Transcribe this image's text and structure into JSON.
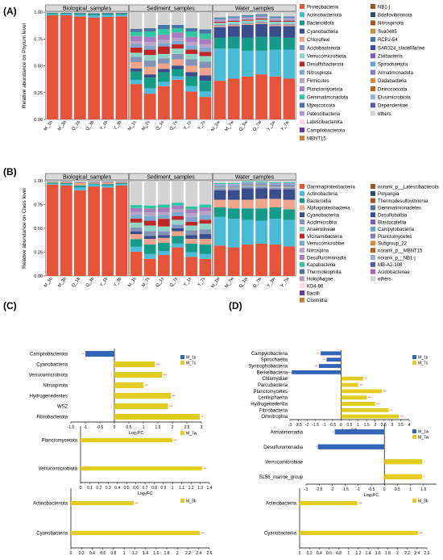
{
  "panels": {
    "A": "(A)",
    "B": "(B)",
    "C": "(C)",
    "D": "(D)"
  },
  "colors": {
    "fc_up": "#e2cd1e",
    "fc_down": "#3466b8"
  },
  "chart_data": [
    {
      "type": "bar",
      "id": "A",
      "stacked": true,
      "ylabel": "Relative abundance on Phylum level",
      "ylim": [
        0,
        1
      ],
      "yticks": [
        "0.00",
        "0.25",
        "0.50",
        "0.75",
        "1.00"
      ],
      "facets": [
        "Biological_samples",
        "Sediment_samples",
        "Water_samples"
      ],
      "categories": [
        [
          "M_1b",
          "M_3b",
          "Q_1b",
          "Q_3b",
          "Y_1b",
          "Y_3b"
        ],
        [
          "M_1s",
          "M_7s",
          "Q_1s",
          "Q_7s",
          "Y_1s",
          "Y_7s"
        ],
        [
          "M_1w",
          "M_7w",
          "Q_1w",
          "Q_7w",
          "Y_1w",
          "Y_7w"
        ]
      ],
      "legend": [
        "Proteobacteria",
        "Actinobacteriota",
        "Bacteroidota",
        "Cyanobacteria",
        "Chloroflexi",
        "Acidobacteriota",
        "Verrucomicrobiota",
        "Desulfobacterota",
        "Nitrospirota",
        "Firmicutes",
        "Planctomycetota",
        "Gemmatimonadota",
        "Myxococcota",
        "Patescibacteria",
        "Latescibacterota",
        "Campilobacterota",
        "MBNT15",
        "NB1-j",
        "Bdellovibrionota",
        "Nitrospinota",
        "Sva0485",
        "RCP2-54",
        "SAR324_cladeMarine",
        "Zixibacteria",
        "Spirochaetota",
        "Armatimonadota",
        "Dadabacteria",
        "Deinococcota",
        "Elusimicrobiota",
        "Dependentiae",
        "others"
      ],
      "legend_colors": [
        "#e8533c",
        "#4bbbd8",
        "#159b8a",
        "#3a4d8c",
        "#f0a48c",
        "#8593b8",
        "#8fd3c4",
        "#c12525",
        "#7da7cf",
        "#b7a4c8",
        "#a77fc0",
        "#2ec8a0",
        "#4a74a6",
        "#b49ac2",
        "#ffd5e8",
        "#6a3d9a",
        "#c87d3a",
        "#8e5a2e",
        "#34495e",
        "#a0522d",
        "#c0903a",
        "#4f6e9a",
        "#3b4aa0",
        "#7b5fb0",
        "#6fa0c8",
        "#8a7bb7",
        "#d88a3a",
        "#b5651d",
        "#9ab0cc",
        "#5a5aa0",
        "#d3d3d3"
      ],
      "series_order": [
        "Proteobacteria",
        "Actinobacteriota",
        "Bacteroidota",
        "Cyanobacteria",
        "Chloroflexi",
        "Acidobacteriota",
        "Verrucomicrobiota",
        "Desulfobacterota",
        "Nitrospirota",
        "Firmicutes",
        "Planctomycetota",
        "Gemmatimonadota",
        "Myxococcota",
        "others"
      ],
      "values": [
        [
          [
            0.97,
            0.01,
            0.01,
            0.003,
            0,
            0,
            0.002,
            0,
            0,
            0.002,
            0,
            0,
            0,
            0.003
          ],
          [
            0.97,
            0.01,
            0.01,
            0.003,
            0,
            0,
            0.002,
            0,
            0,
            0.002,
            0,
            0,
            0,
            0.003
          ],
          [
            0.96,
            0.015,
            0.01,
            0.005,
            0,
            0,
            0.003,
            0,
            0,
            0.003,
            0,
            0,
            0,
            0.004
          ],
          [
            0.95,
            0.02,
            0.012,
            0.006,
            0,
            0,
            0.004,
            0,
            0,
            0.003,
            0,
            0,
            0,
            0.005
          ],
          [
            0.955,
            0.02,
            0.01,
            0.006,
            0,
            0,
            0.003,
            0,
            0,
            0.002,
            0,
            0,
            0,
            0.004
          ],
          [
            0.96,
            0.015,
            0.012,
            0.005,
            0,
            0,
            0.003,
            0,
            0,
            0.002,
            0,
            0,
            0,
            0.003
          ]
        ],
        [
          [
            0.34,
            0.04,
            0.08,
            0.03,
            0.06,
            0.05,
            0.04,
            0.05,
            0.03,
            0.03,
            0.05,
            0.04,
            0.03,
            0.16
          ],
          [
            0.24,
            0.05,
            0.1,
            0.03,
            0.07,
            0.06,
            0.05,
            0.05,
            0.04,
            0.03,
            0.05,
            0.05,
            0.03,
            0.15
          ],
          [
            0.31,
            0.04,
            0.09,
            0.03,
            0.05,
            0.05,
            0.04,
            0.07,
            0.03,
            0.03,
            0.05,
            0.05,
            0.04,
            0.12
          ],
          [
            0.37,
            0.03,
            0.07,
            0.03,
            0.06,
            0.05,
            0.05,
            0.04,
            0.03,
            0.03,
            0.05,
            0.04,
            0.03,
            0.12
          ],
          [
            0.26,
            0.05,
            0.09,
            0.04,
            0.06,
            0.06,
            0.05,
            0.04,
            0.04,
            0.03,
            0.05,
            0.05,
            0.03,
            0.15
          ],
          [
            0.21,
            0.05,
            0.1,
            0.05,
            0.07,
            0.06,
            0.05,
            0.04,
            0.04,
            0.03,
            0.05,
            0.05,
            0.04,
            0.16
          ]
        ],
        [
          [
            0.36,
            0.3,
            0.1,
            0.1,
            0.01,
            0.01,
            0.02,
            0.01,
            0.005,
            0.01,
            0.01,
            0.005,
            0.01,
            0.05
          ],
          [
            0.38,
            0.28,
            0.11,
            0.1,
            0.01,
            0.01,
            0.02,
            0.01,
            0.005,
            0.01,
            0.01,
            0.005,
            0.01,
            0.04
          ],
          [
            0.4,
            0.24,
            0.12,
            0.12,
            0.01,
            0.01,
            0.02,
            0.01,
            0.005,
            0.01,
            0.01,
            0.005,
            0.01,
            0.03
          ],
          [
            0.42,
            0.22,
            0.13,
            0.12,
            0.01,
            0.01,
            0.02,
            0.01,
            0.005,
            0.01,
            0.01,
            0.005,
            0.01,
            0.02
          ],
          [
            0.4,
            0.25,
            0.12,
            0.1,
            0.01,
            0.01,
            0.02,
            0.01,
            0.005,
            0.01,
            0.01,
            0.005,
            0.01,
            0.04
          ],
          [
            0.38,
            0.27,
            0.11,
            0.11,
            0.01,
            0.01,
            0.02,
            0.01,
            0.005,
            0.01,
            0.01,
            0.005,
            0.01,
            0.04
          ]
        ]
      ]
    },
    {
      "type": "bar",
      "id": "B",
      "stacked": true,
      "ylabel": "Relative abundance on Class level",
      "ylim": [
        0,
        1
      ],
      "yticks": [
        "0.00",
        "0.25",
        "0.50",
        "0.75",
        "1.00"
      ],
      "facets": [
        "Biological_samples",
        "Sediment_samples",
        "Water_samples"
      ],
      "categories": [
        [
          "M_1b",
          "M_3b",
          "Q_1b",
          "Q_3b",
          "Y_1b",
          "Y_3b"
        ],
        [
          "M_1s",
          "M_7s",
          "Q_1s",
          "Q_7s",
          "Y_1s",
          "Y_7s"
        ],
        [
          "M_1w",
          "M_7w",
          "Q_1w",
          "Q_7w",
          "Y_1w",
          "Y_7w"
        ]
      ],
      "legend": [
        "Gammaproteobacteria",
        "Actinobacteria",
        "Bacteroidia",
        "Alphaproteobacteria",
        "Cyanobacteriia",
        "Acidimicrobiia",
        "Anaerolineae",
        "Vicinamibacteria",
        "Verrucomicrobiae",
        "Nitrospiria",
        "Desulfuromonadia",
        "Kapabacteria",
        "Thermoleophilia",
        "Holophagae",
        "KD4-96",
        "Bacilli",
        "Clostridia",
        "norank_p__Latescibacterota",
        "Polyangia",
        "Thermodesulfovibrionia",
        "Gemmatimonadetes",
        "Desulfobulbia",
        "Blastocatellia",
        "Campylobacteria",
        "Planctomycetes",
        "Subgroup_22",
        "norank_p__MBNT15",
        "norank_p__NB1-j",
        "MB-A2-108",
        "Acidobacteriae",
        "others"
      ],
      "legend_colors": [
        "#e8533c",
        "#4bbbd8",
        "#159b8a",
        "#f0a48c",
        "#3a4d8c",
        "#8593b8",
        "#8fd3c4",
        "#c12525",
        "#7da7cf",
        "#b7a4c8",
        "#a77fc0",
        "#2ec8a0",
        "#4a74a6",
        "#b49ac2",
        "#ffd5e8",
        "#6a3d9a",
        "#c87d3a",
        "#8e5a2e",
        "#34495e",
        "#a0522d",
        "#4f6e9a",
        "#3b4aa0",
        "#7b5fb0",
        "#6fa0c8",
        "#8a7bb7",
        "#d88a3a",
        "#b5651d",
        "#9ab0cc",
        "#5a5aa0",
        "#9a6bb5",
        "#d3d3d3"
      ],
      "series_order": [
        "Gammaproteobacteria",
        "Actinobacteria",
        "Bacteroidia",
        "Alphaproteobacteria",
        "Cyanobacteriia",
        "Acidimicrobiia",
        "Anaerolineae",
        "Vicinamibacteria",
        "Verrucomicrobiae",
        "Nitrospiria",
        "Desulfuromonadia",
        "Kapabacteria",
        "others"
      ],
      "values": [
        [
          [
            0.96,
            0.01,
            0.01,
            0.01,
            0.003,
            0,
            0,
            0,
            0.002,
            0,
            0,
            0,
            0.005
          ],
          [
            0.95,
            0.015,
            0.01,
            0.012,
            0.004,
            0,
            0,
            0,
            0.003,
            0,
            0,
            0,
            0.006
          ],
          [
            0.9,
            0.03,
            0.02,
            0.03,
            0.005,
            0,
            0,
            0,
            0.004,
            0,
            0,
            0,
            0.011
          ],
          [
            0.94,
            0.02,
            0.01,
            0.015,
            0.005,
            0,
            0,
            0,
            0.003,
            0,
            0,
            0,
            0.007
          ],
          [
            0.93,
            0.02,
            0.015,
            0.02,
            0.005,
            0,
            0,
            0,
            0.003,
            0,
            0,
            0,
            0.007
          ],
          [
            0.95,
            0.015,
            0.01,
            0.012,
            0.004,
            0,
            0,
            0,
            0.003,
            0,
            0,
            0,
            0.006
          ]
        ],
        [
          [
            0.25,
            0.05,
            0.08,
            0.05,
            0.03,
            0.04,
            0.05,
            0.04,
            0.04,
            0.03,
            0.04,
            0.03,
            0.25
          ],
          [
            0.18,
            0.05,
            0.1,
            0.06,
            0.03,
            0.05,
            0.06,
            0.05,
            0.05,
            0.04,
            0.04,
            0.03,
            0.26
          ],
          [
            0.22,
            0.04,
            0.09,
            0.05,
            0.03,
            0.04,
            0.05,
            0.08,
            0.04,
            0.03,
            0.05,
            0.03,
            0.25
          ],
          [
            0.3,
            0.04,
            0.08,
            0.05,
            0.03,
            0.04,
            0.05,
            0.04,
            0.04,
            0.03,
            0.04,
            0.03,
            0.23
          ],
          [
            0.2,
            0.05,
            0.09,
            0.05,
            0.04,
            0.05,
            0.05,
            0.04,
            0.05,
            0.04,
            0.04,
            0.03,
            0.27
          ],
          [
            0.18,
            0.05,
            0.1,
            0.06,
            0.05,
            0.05,
            0.06,
            0.04,
            0.05,
            0.04,
            0.04,
            0.03,
            0.25
          ]
        ],
        [
          [
            0.32,
            0.3,
            0.1,
            0.08,
            0.1,
            0.02,
            0.01,
            0.005,
            0.02,
            0.005,
            0.005,
            0.01,
            0.025
          ],
          [
            0.3,
            0.3,
            0.11,
            0.09,
            0.1,
            0.02,
            0.01,
            0.005,
            0.02,
            0.005,
            0.005,
            0.01,
            0.025
          ],
          [
            0.33,
            0.26,
            0.12,
            0.09,
            0.12,
            0.02,
            0.01,
            0.005,
            0.02,
            0.005,
            0.005,
            0.01,
            0.005
          ],
          [
            0.34,
            0.24,
            0.13,
            0.1,
            0.11,
            0.02,
            0.01,
            0.005,
            0.02,
            0.005,
            0.005,
            0.01,
            0.005
          ],
          [
            0.33,
            0.27,
            0.12,
            0.09,
            0.1,
            0.02,
            0.01,
            0.005,
            0.02,
            0.005,
            0.005,
            0.01,
            0.015
          ],
          [
            0.31,
            0.28,
            0.11,
            0.1,
            0.11,
            0.02,
            0.01,
            0.005,
            0.02,
            0.005,
            0.005,
            0.01,
            0.015
          ]
        ]
      ]
    },
    {
      "type": "bar",
      "id": "C1",
      "orientation": "horizontal",
      "xlabel": "Log₂FC",
      "xlim": [
        -1.5,
        3
      ],
      "xticks": [
        "-1.5",
        "-1",
        "-0.5",
        "0",
        "0.5",
        "1",
        "1.5",
        "2",
        "2.5",
        "3"
      ],
      "legend": [
        "M_1s",
        "M_7s"
      ],
      "categories": [
        "Campilobacterota",
        "Cyanobacteria",
        "Verrucomicrobiota",
        "Nitrospirota",
        "Hydrogenedentes",
        "WS2",
        "Fibrobacterota"
      ],
      "values": [
        -1.0,
        1.4,
        1.65,
        1.0,
        1.95,
        1.85,
        2.95
      ],
      "stars": [
        "**",
        "***",
        "***",
        "***",
        "***",
        "***",
        "**"
      ]
    },
    {
      "type": "bar",
      "id": "C2",
      "orientation": "horizontal",
      "xlabel": "Log₂FC",
      "xlim": [
        0,
        1.4
      ],
      "xticks": [
        "0",
        "0.1",
        "0.2",
        "0.3",
        "0.4",
        "0.5",
        "0.6",
        "0.7",
        "0.8",
        "0.9",
        "1",
        "1.1",
        "1.2",
        "1.3",
        "1.4"
      ],
      "legend": [
        "M_7w"
      ],
      "categories": [
        "Planctomycetota",
        "Verrucomicrobiota"
      ],
      "values": [
        1.0,
        1.32
      ],
      "stars": [
        "***",
        "***"
      ]
    },
    {
      "type": "bar",
      "id": "C3",
      "orientation": "horizontal",
      "xlabel": "",
      "xlim": [
        0,
        2.6
      ],
      "xticks": [
        "0",
        "0.2",
        "0.4",
        "0.6",
        "0.8",
        "1",
        "1.2",
        "1.4",
        "1.6",
        "1.8",
        "2",
        "2.2",
        "2.4",
        "2.6"
      ],
      "legend": [
        "M_3b"
      ],
      "categories": [
        "Actinobacteriota",
        "Cyanobacteria"
      ],
      "values": [
        1.18,
        2.42
      ],
      "stars": [
        "***",
        "***"
      ]
    },
    {
      "type": "bar",
      "id": "D1",
      "orientation": "horizontal",
      "xlabel": "Log₂FC",
      "xlim": [
        -3,
        4
      ],
      "xticks": [
        "-3",
        "-2.5",
        "-2",
        "-1.5",
        "-1",
        "-0.5",
        "0",
        "0.5",
        "1",
        "1.5",
        "2",
        "2.5",
        "3",
        "3.5",
        "4"
      ],
      "legend": [
        "M_1s",
        "M_7s"
      ],
      "categories": [
        "Campylobacteria",
        "Spirochaetia",
        "Syntrophobacteria",
        "Berkelbacteria",
        "Chlamydiae",
        "Parcubacteria",
        "Planctomycetes",
        "Lentisphaeria",
        "Hydrogenedentia",
        "Fibrobacteria",
        "Omnitrophia"
      ],
      "values": [
        -1.2,
        -0.85,
        -1.3,
        -2.9,
        1.3,
        1.0,
        2.4,
        1.5,
        2.0,
        2.8,
        3.4
      ],
      "stars": [
        "**",
        "**",
        "***",
        "***",
        "**",
        "***",
        "***",
        "***",
        "***",
        "**",
        "***"
      ]
    },
    {
      "type": "bar",
      "id": "D2",
      "orientation": "horizontal",
      "xlabel": "Log₂FC",
      "xlim": [
        -3,
        2
      ],
      "xticks": [
        "-3",
        "-2.5",
        "-2",
        "-1.5",
        "-1",
        "-0.5",
        "0",
        "0.5",
        "1",
        "1.5"
      ],
      "legend": [
        "M_1w",
        "M_7w"
      ],
      "categories": [
        "Armatimonadia",
        "Desulfuromonadia",
        "Verrucomicrobiae",
        "SL56_marine_group"
      ],
      "values": [
        -1.9,
        -2.55,
        1.45,
        1.45
      ],
      "stars": [
        "*",
        "*",
        "*",
        "*"
      ]
    },
    {
      "type": "bar",
      "id": "D3",
      "orientation": "horizontal",
      "xlabel": "",
      "xlim": [
        0,
        2.6
      ],
      "xticks": [
        "0",
        "0.2",
        "0.4",
        "0.6",
        "0.8",
        "1",
        "1.2",
        "1.4",
        "1.6",
        "1.8",
        "2",
        "2.2",
        "2.4",
        "2.6"
      ],
      "legend": [
        "M_3b"
      ],
      "categories": [
        "Actinobacteria",
        "Cyanobacteriia"
      ],
      "values": [
        1.18,
        2.42
      ],
      "stars": [
        "***",
        "***"
      ]
    }
  ]
}
